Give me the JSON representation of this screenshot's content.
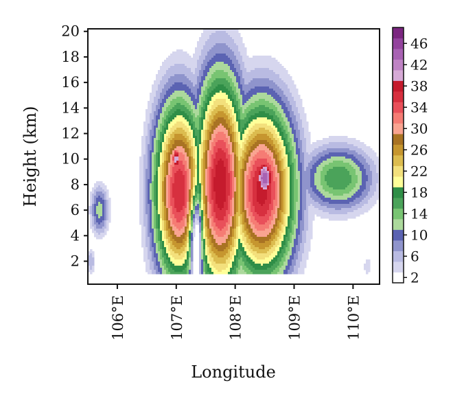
{
  "chart_data": {
    "type": "heatmap",
    "title": "",
    "xlabel": "Longitude",
    "ylabel": "Height (km)",
    "x_ticks": [
      "106°E",
      "107°E",
      "108°E",
      "109°E",
      "110°E"
    ],
    "x_tick_values": [
      106,
      107,
      108,
      109,
      110
    ],
    "xlim": [
      105.5,
      110.45
    ],
    "y_ticks": [
      "2",
      "4",
      "6",
      "8",
      "10",
      "12",
      "14",
      "16",
      "18",
      "20"
    ],
    "y_tick_values": [
      2,
      4,
      6,
      8,
      10,
      12,
      14,
      16,
      18,
      20
    ],
    "ylim": [
      0.2,
      20.2
    ],
    "colorbar": {
      "labels": [
        "2",
        "6",
        "10",
        "14",
        "18",
        "22",
        "26",
        "30",
        "34",
        "38",
        "42",
        "46"
      ],
      "label_values": [
        2,
        6,
        10,
        14,
        18,
        22,
        26,
        30,
        34,
        38,
        42,
        46
      ],
      "levels": [
        2,
        4,
        6,
        8,
        10,
        12,
        14,
        16,
        18,
        20,
        22,
        24,
        26,
        28,
        30,
        32,
        34,
        36,
        38,
        40,
        42,
        44,
        46,
        48
      ],
      "colors": [
        "#ffffff",
        "#d6d6ee",
        "#b9bbe2",
        "#8f94cc",
        "#5b63b2",
        "#acd99c",
        "#78c472",
        "#4ba35a",
        "#2f8e47",
        "#ffff99",
        "#f3e07c",
        "#dcbc4f",
        "#c6962f",
        "#a97323",
        "#f9a491",
        "#f57c74",
        "#e9505a",
        "#d7303f",
        "#c51b2d",
        "#d6aad6",
        "#bf83c4",
        "#a862b3",
        "#93439d",
        "#7b2680"
      ]
    },
    "grid": false
  }
}
